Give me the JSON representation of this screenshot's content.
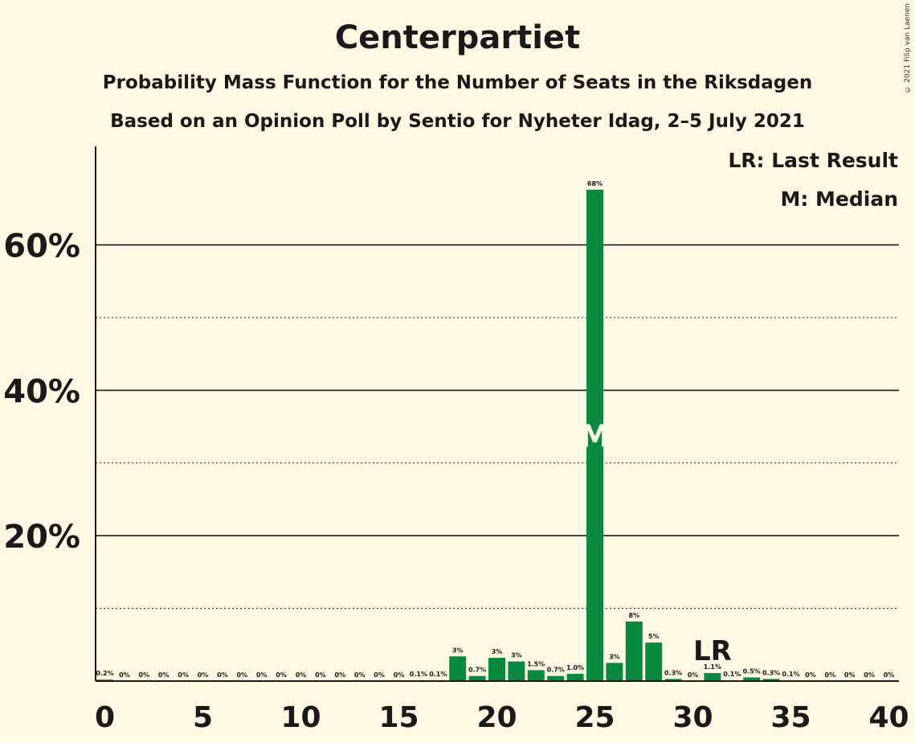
{
  "chart_data": {
    "type": "bar",
    "title": "Centerpartiet",
    "subtitle": "Probability Mass Function for the Number of Seats in the Riksdagen",
    "subtitle2": "Based on an Opinion Poll by Sentio for Nyheter Idag, 2–5 July 2021",
    "legend": [
      "LR: Last Result",
      "M: Median"
    ],
    "copyright": "© 2021 Filip van Laenen",
    "x": [
      0,
      1,
      2,
      3,
      4,
      5,
      6,
      7,
      8,
      9,
      10,
      11,
      12,
      13,
      14,
      15,
      16,
      17,
      18,
      19,
      20,
      21,
      22,
      23,
      24,
      25,
      26,
      27,
      28,
      29,
      30,
      31,
      32,
      33,
      34,
      35,
      36,
      37,
      38,
      39,
      40
    ],
    "values": [
      0.2,
      0,
      0,
      0,
      0,
      0,
      0,
      0,
      0,
      0,
      0,
      0,
      0,
      0,
      0,
      0,
      0.1,
      0.1,
      3.4,
      0.7,
      3.2,
      2.7,
      1.5,
      0.7,
      1.0,
      67.6,
      2.5,
      8.2,
      5.3,
      0.3,
      0,
      1.1,
      0.1,
      0.5,
      0.3,
      0.1,
      0,
      0,
      0,
      0,
      0
    ],
    "labels": [
      "0.2%",
      "0%",
      "0%",
      "0%",
      "0%",
      "0%",
      "0%",
      "0%",
      "0%",
      "0%",
      "0%",
      "0%",
      "0%",
      "0%",
      "0%",
      "0%",
      "0.1%",
      "0.1%",
      "3%",
      "0.7%",
      "3%",
      "3%",
      "1.5%",
      "0.7%",
      "1.0%",
      "68%",
      "3%",
      "8%",
      "5%",
      "0.3%",
      "0%",
      "1.1%",
      "0.1%",
      "0.5%",
      "0.3%",
      "0.1%",
      "0%",
      "0%",
      "0%",
      "0%",
      "0%"
    ],
    "xticks": [
      0,
      5,
      10,
      15,
      20,
      25,
      30,
      35,
      40
    ],
    "yticks": [
      {
        "value": 20,
        "label": "20%"
      },
      {
        "value": 40,
        "label": "40%"
      },
      {
        "value": 60,
        "label": "60%"
      }
    ],
    "minor_gridlines": [
      10,
      30,
      50
    ],
    "ylim": [
      0,
      73.5
    ],
    "median": 25,
    "median_marker": "M",
    "last_result": 31,
    "last_result_marker": "LR",
    "bar_color": "#078a3f",
    "grid": true
  }
}
